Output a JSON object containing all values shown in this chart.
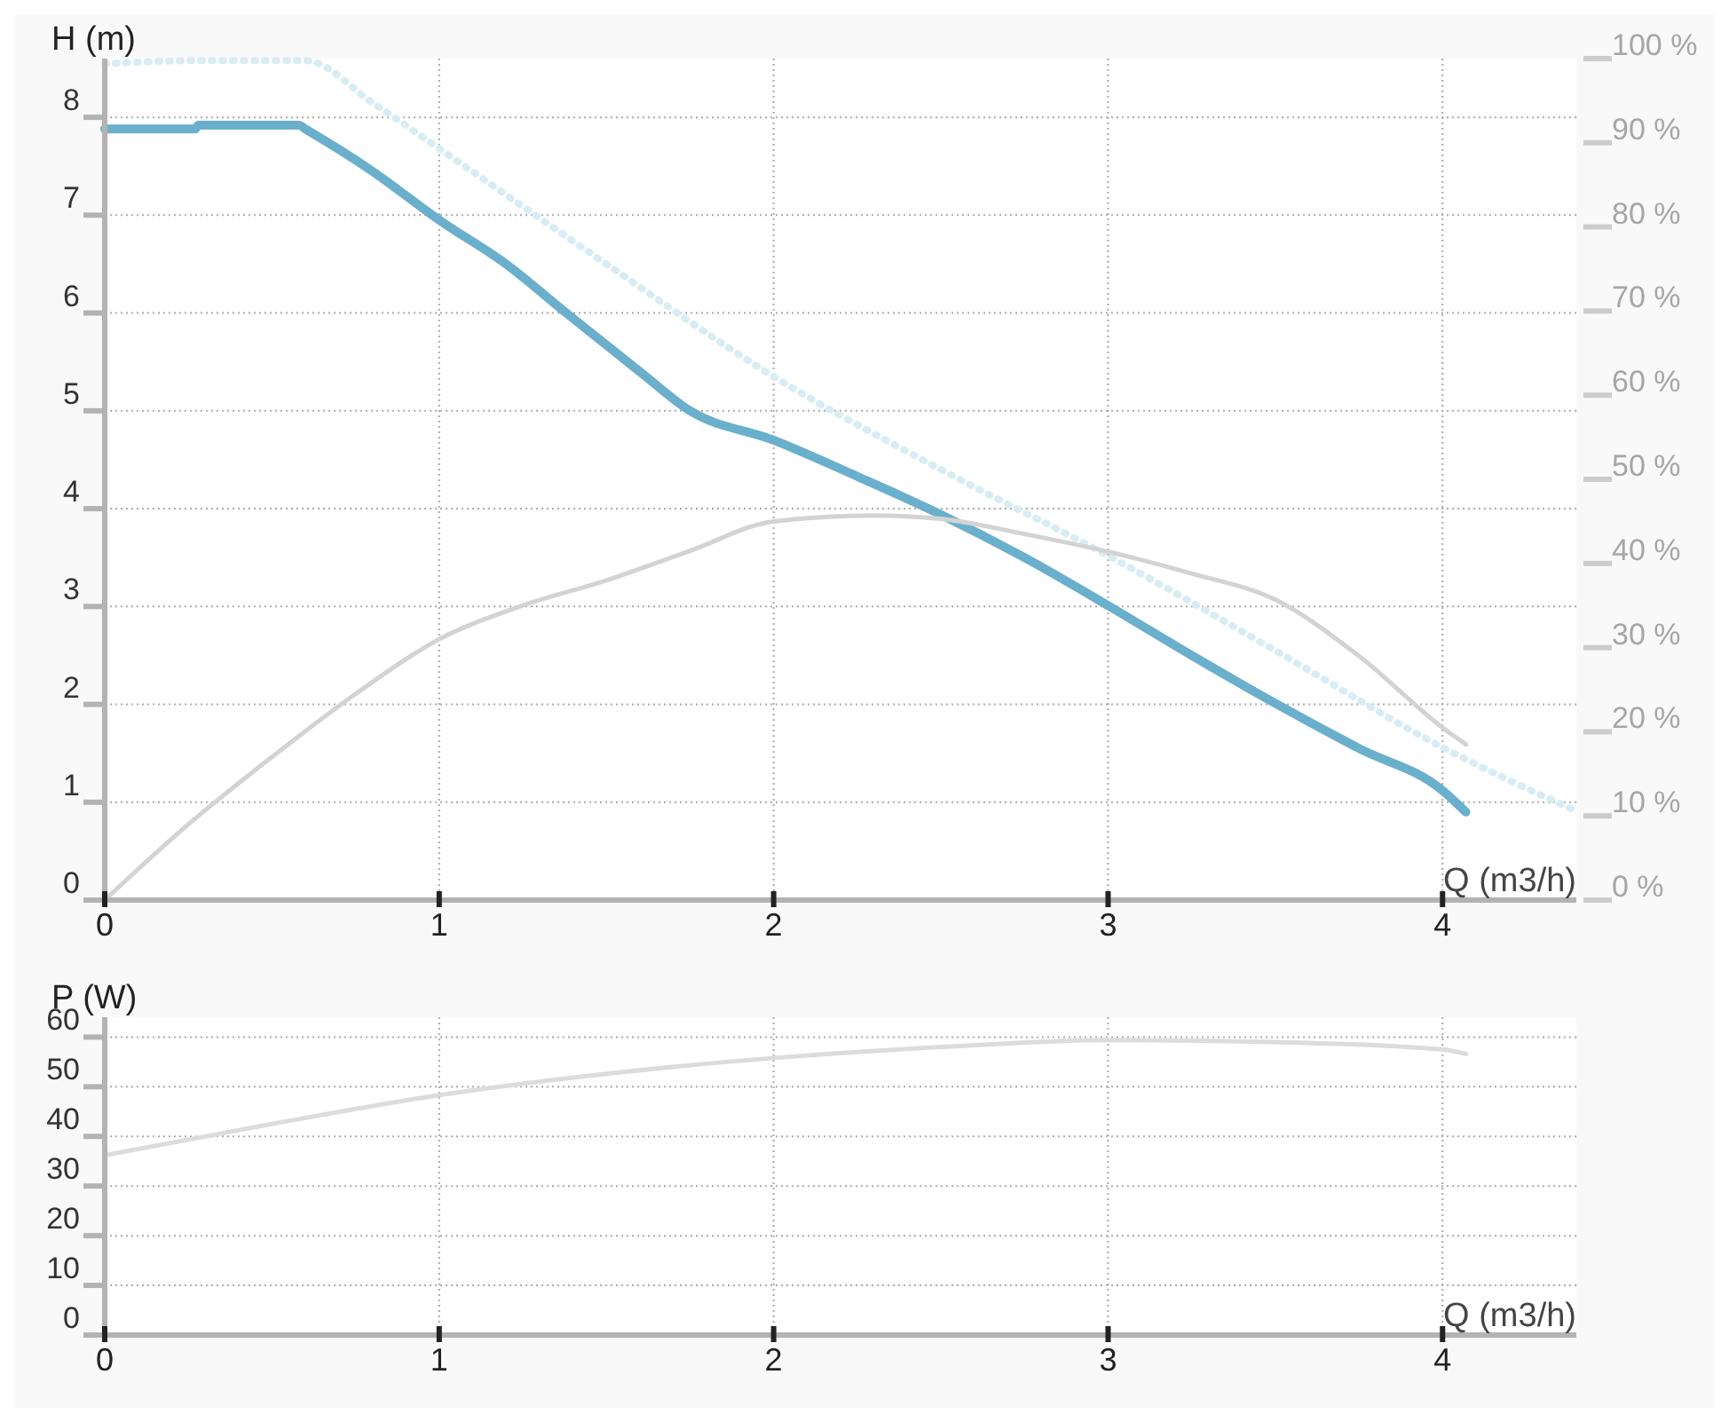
{
  "chart_data": [
    {
      "type": "line",
      "xlabel": "Q (m3/h)",
      "ylabel": "H (m)",
      "xlim": [
        0,
        4.4
      ],
      "ylim": [
        0,
        8.6
      ],
      "xticks": [
        0,
        1,
        2,
        3,
        4
      ],
      "yticks": [
        0,
        1,
        2,
        3,
        4,
        5,
        6,
        7,
        8
      ],
      "y2lim": [
        0,
        100
      ],
      "y2ticks": [
        {
          "value": 0,
          "label": "0 %"
        },
        {
          "value": 10,
          "label": "10 %"
        },
        {
          "value": 20,
          "label": "20 %"
        },
        {
          "value": 30,
          "label": "30 %"
        },
        {
          "value": 40,
          "label": "40 %"
        },
        {
          "value": 50,
          "label": "50 %"
        },
        {
          "value": 60,
          "label": "60 %"
        },
        {
          "value": 70,
          "label": "70 %"
        },
        {
          "value": 80,
          "label": "80 %"
        },
        {
          "value": 90,
          "label": "90 %"
        },
        {
          "value": 100,
          "label": "100 %"
        }
      ],
      "grid": true,
      "series": [
        {
          "color": "#d8ecf4",
          "line_style": "dotted",
          "x": [
            0,
            0.3,
            0.6,
            0.8,
            1,
            1.5,
            2,
            2.5,
            3,
            3.5,
            4,
            4.4
          ],
          "values": [
            8.55,
            8.58,
            8.58,
            8.15,
            7.68,
            6.5,
            5.35,
            4.4,
            3.52,
            2.55,
            1.56,
            0.91
          ]
        },
        {
          "color": "#6ab0cc",
          "line_style": "solid",
          "x": [
            0,
            0.27,
            0.28,
            0.58,
            0.6,
            0.8,
            1,
            1.2,
            1.38,
            1.6,
            1.75,
            2,
            2.25,
            2.5,
            2.75,
            3,
            3.25,
            3.5,
            3.75,
            4,
            4.07
          ],
          "values": [
            7.88,
            7.88,
            7.92,
            7.92,
            7.88,
            7.45,
            6.95,
            6.5,
            6,
            5.4,
            5,
            4.7,
            4.33,
            3.94,
            3.5,
            3.01,
            2.5,
            2.01,
            1.55,
            1.12,
            0.9
          ]
        },
        {
          "color": "#d3d3d3",
          "line_style": "solid",
          "axis": "y2",
          "x": [
            0,
            0.25,
            0.5,
            0.75,
            1,
            1.25,
            1.5,
            1.75,
            2,
            2.3,
            2.5,
            2.75,
            3,
            3.25,
            3.5,
            3.75,
            4,
            4.07
          ],
          "values": [
            0,
            9,
            17,
            24.5,
            31,
            35,
            38,
            41.5,
            45,
            45.7,
            45.3,
            43.5,
            41.4,
            38.8,
            35.7,
            29,
            20.5,
            18.5
          ]
        }
      ]
    },
    {
      "type": "line",
      "xlabel": "Q (m3/h)",
      "ylabel": "P (W)",
      "xlim": [
        0,
        4.4
      ],
      "ylim": [
        0,
        64
      ],
      "xticks": [
        0,
        1,
        2,
        3,
        4
      ],
      "yticks": [
        0,
        10,
        20,
        30,
        40,
        50,
        60
      ],
      "grid": true,
      "series": [
        {
          "color": "#dcdcdc",
          "line_style": "solid",
          "x": [
            0,
            0.5,
            1,
            1.5,
            2,
            2.5,
            3,
            3.5,
            4,
            4.07
          ],
          "values": [
            36.2,
            42.5,
            48.3,
            52.6,
            55.8,
            58,
            59.4,
            59,
            57.5,
            56.6
          ]
        }
      ]
    }
  ]
}
